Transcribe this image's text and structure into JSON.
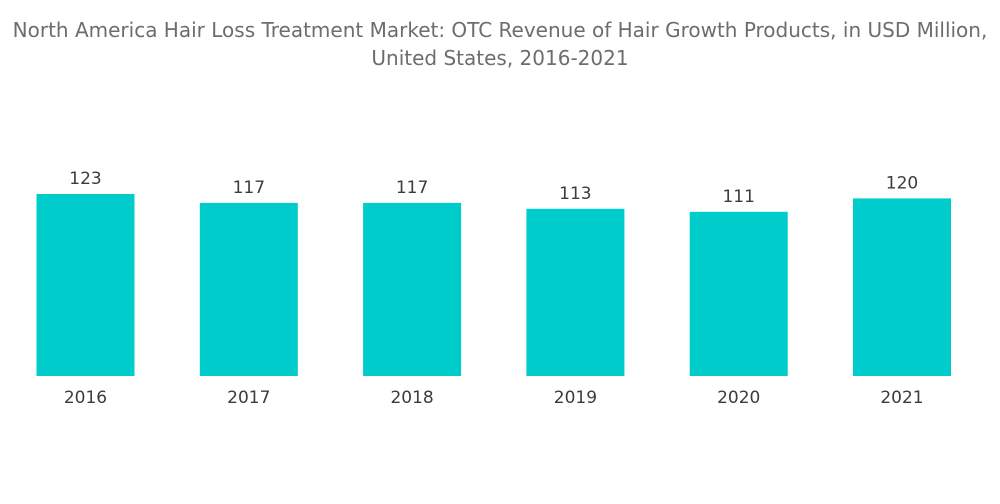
{
  "chart_data": {
    "type": "bar",
    "title": "North America Hair Loss Treatment Market: OTC Revenue of Hair Growth Products, in USD Million, United States, 2016-2021",
    "xlabel": "",
    "ylabel": "",
    "categories": [
      "2016",
      "2017",
      "2018",
      "2019",
      "2020",
      "2021"
    ],
    "values": [
      123,
      117,
      117,
      113,
      111,
      120
    ],
    "data_labels": [
      "123",
      "117",
      "117",
      "113",
      "111",
      "120"
    ],
    "ylim": [
      0,
      123
    ],
    "grid": false,
    "legend": "none",
    "bar_color": "#00cccc"
  }
}
